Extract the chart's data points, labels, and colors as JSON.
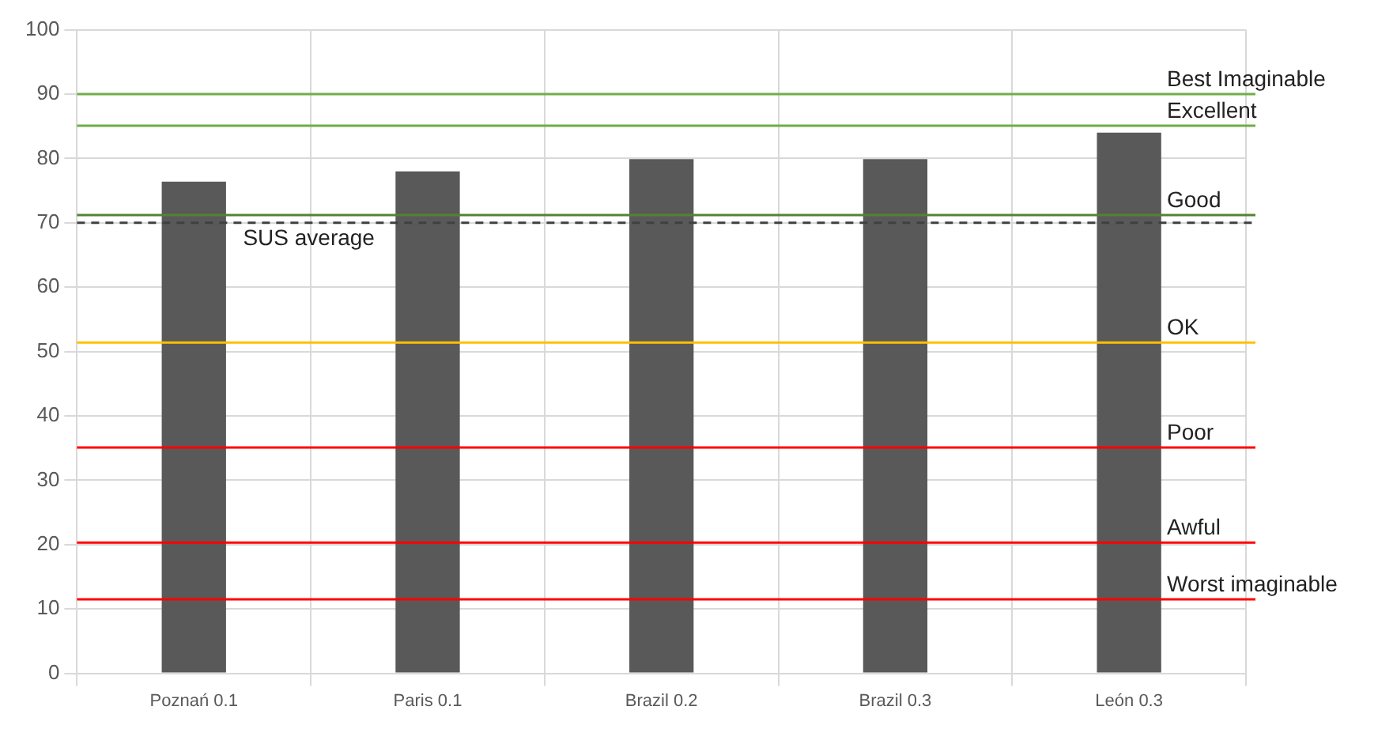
{
  "chart_data": {
    "type": "bar",
    "categories": [
      "Poznań 0.1",
      "Paris 0.1",
      "Brazil 0.2",
      "Brazil 0.3",
      "León 0.3"
    ],
    "values": [
      76.4,
      78.0,
      79.9,
      79.9,
      84.0
    ],
    "color": "#595959",
    "ylim": [
      0,
      100
    ],
    "yticks": [
      0,
      10,
      20,
      30,
      40,
      50,
      60,
      70,
      80,
      90,
      100
    ],
    "grid": true,
    "legend": false,
    "ref_lines": [
      {
        "axis": "y",
        "value": 90,
        "label": "Best Imaginable",
        "color": "#70ad47"
      },
      {
        "axis": "y",
        "value": 85.1,
        "label": "Excellent",
        "color": "#70ad47"
      },
      {
        "axis": "y",
        "value": 71.2,
        "label": "Good",
        "color": "#548235"
      },
      {
        "axis": "y",
        "value": 70,
        "label": "SUS average",
        "color": "#404040",
        "line_style": "dashed"
      },
      {
        "axis": "y",
        "value": 51.4,
        "label": "OK",
        "color": "#ffc000"
      },
      {
        "axis": "y",
        "value": 35.1,
        "label": "Poor",
        "color": "#ff0000"
      },
      {
        "axis": "y",
        "value": 20.3,
        "label": "Awful",
        "color": "#ff0000"
      },
      {
        "axis": "y",
        "value": 11.5,
        "label": "Worst imaginable",
        "color": "#ff0000"
      }
    ]
  }
}
